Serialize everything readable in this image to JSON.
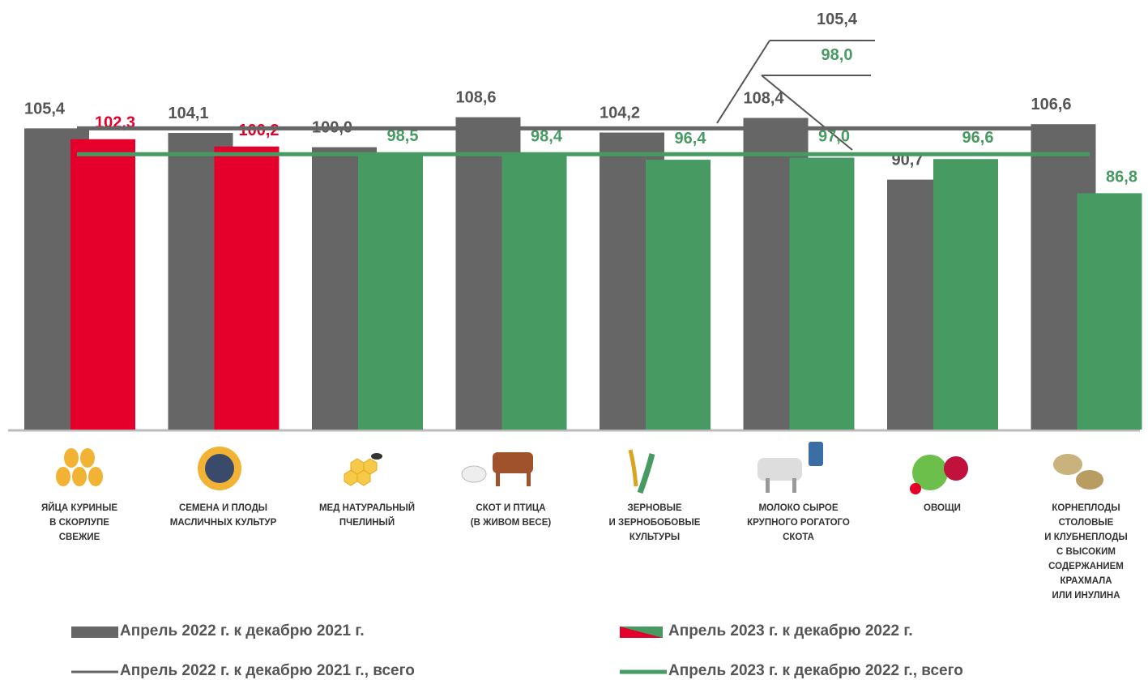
{
  "chart_data": {
    "type": "bar",
    "categories": [
      "ЯЙЦА КУРИНЫЕ\nВ СКОРЛУПЕ\nСВЕЖИЕ",
      "СЕМЕНА И ПЛОДЫ\nМАСЛИЧНЫХ КУЛЬТУР",
      "МЕД НАТУРАЛЬНЫЙ\nПЧЕЛИНЫЙ",
      "СКОТ И ПТИЦА\n(В ЖИВОМ ВЕСЕ)",
      "ЗЕРНОВЫЕ\nИ ЗЕРНОБОБОВЫЕ\nКУЛЬТУРЫ",
      "МОЛОКО СЫРОЕ\nКРУПНОГО РОГАТОГО\nСКОТА",
      "ОВОЩИ",
      "КОРНЕПЛОДЫ\nСТОЛОВЫЕ\nИ КЛУБНЕПЛОДЫ\nС ВЫСОКИМ\nСОДЕРЖАНИЕМ\nКРАХМАЛА\nИЛИ ИНУЛИНА"
    ],
    "series": [
      {
        "name": "Апрель 2022 г. к декабрю 2021 г.",
        "color": "#666666",
        "values": [
          105.4,
          104.1,
          100.0,
          108.6,
          104.2,
          108.4,
          90.7,
          106.6
        ],
        "value_labels": [
          "105,4",
          "104,1",
          "100,0",
          "108,6",
          "104,2",
          "108,4",
          "90,7",
          "106,6"
        ]
      },
      {
        "name": "Апрель 2023 г. к декабрю 2022 г.",
        "colors": [
          "#e4002b",
          "#e4002b",
          "#479a62",
          "#479a62",
          "#479a62",
          "#479a62",
          "#479a62",
          "#479a62"
        ],
        "values": [
          102.3,
          100.2,
          98.5,
          98.4,
          96.4,
          97.0,
          96.6,
          86.8
        ],
        "value_labels": [
          "102,3",
          "100,2",
          "98,5",
          "98,4",
          "96,4",
          "97,0",
          "96,6",
          "86,8"
        ]
      }
    ],
    "reference_lines": [
      {
        "name": "Апрель 2022 г. к декабрю 2021 г., всего",
        "value": 105.4,
        "label": "105,4",
        "color": "#666666"
      },
      {
        "name": "Апрель 2023 г. к декабрю 2022 г., всего",
        "value": 98.0,
        "label": "98,0",
        "color": "#479a62"
      }
    ],
    "ylim": [
      19,
      112
    ]
  }
}
